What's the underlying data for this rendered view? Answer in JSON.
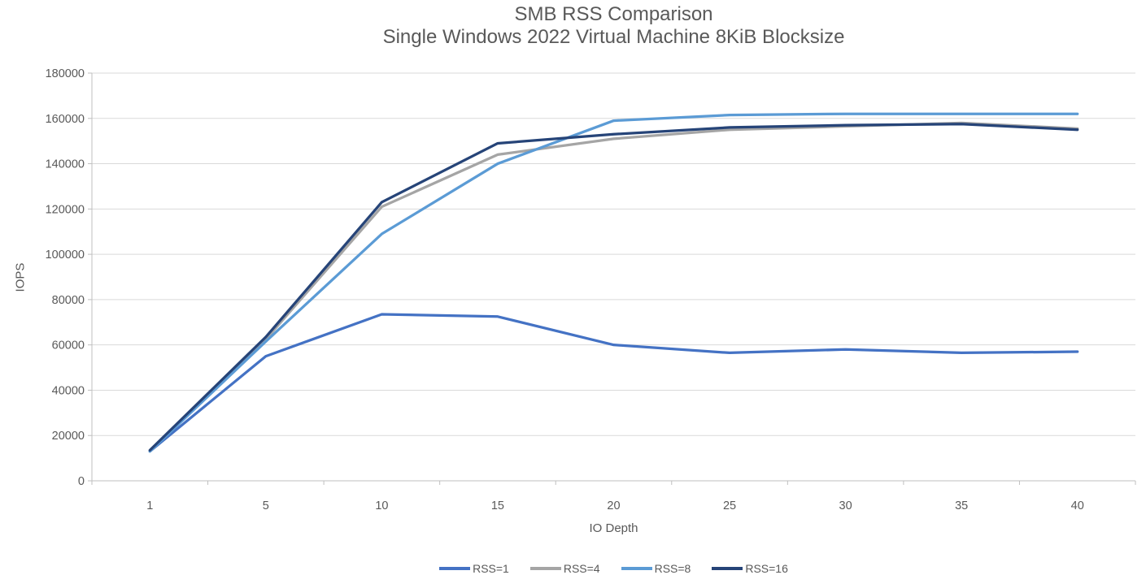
{
  "chart_data": {
    "type": "line",
    "title": "SMB RSS Comparison",
    "subtitle": "Single Windows 2022 Virtual Machine 8KiB Blocksize",
    "xlabel": "IO Depth",
    "ylabel": "IOPS",
    "categories": [
      1,
      5,
      10,
      15,
      20,
      25,
      30,
      35,
      40
    ],
    "series": [
      {
        "name": "RSS=1",
        "color": "#4472C4",
        "values": [
          13000,
          55000,
          73500,
          72500,
          60000,
          56500,
          58000,
          56500,
          57000
        ]
      },
      {
        "name": "RSS=4",
        "color": "#A5A5A5",
        "values": [
          13000,
          62500,
          121000,
          144000,
          151000,
          155000,
          156500,
          158000,
          155500
        ]
      },
      {
        "name": "RSS=8",
        "color": "#5B9BD5",
        "values": [
          13000,
          61500,
          109000,
          140000,
          159000,
          161500,
          162000,
          162000,
          162000
        ]
      },
      {
        "name": "RSS=16",
        "color": "#264478",
        "values": [
          13500,
          63500,
          123000,
          149000,
          153000,
          156000,
          157000,
          157500,
          155000
        ]
      }
    ],
    "ylim": [
      0,
      180000
    ],
    "ytick_step": 20000,
    "grid": "on",
    "legend_position": "bottom",
    "colors": {
      "text": "#595959",
      "grid": "#D9D9D9",
      "axis": "#BFBFBF"
    }
  }
}
